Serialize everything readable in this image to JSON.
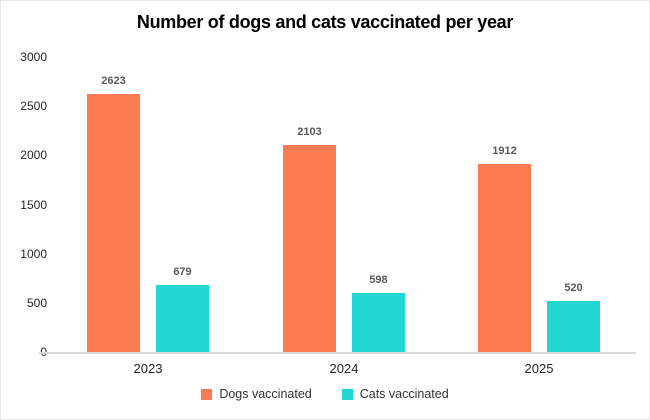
{
  "chart_data": {
    "type": "bar",
    "title": "Number of dogs and cats vaccinated per year",
    "categories": [
      "2023",
      "2024",
      "2025"
    ],
    "series": [
      {
        "name": "Dogs vaccinated",
        "values": [
          2623,
          2103,
          1912
        ],
        "color": "#FB7C53"
      },
      {
        "name": "Cats vaccinated",
        "values": [
          679,
          598,
          520
        ],
        "color": "#20D7D2"
      }
    ],
    "xlabel": "",
    "ylabel": "",
    "ylim": [
      0,
      3000
    ],
    "yticks": [
      0,
      500,
      1000,
      1500,
      2000,
      2500,
      3000
    ],
    "grid": false,
    "legend_position": "bottom",
    "data_labels": true,
    "colors": {
      "data_label": "#595959",
      "tick_label": "#262626",
      "axis_line": "#d9d9d9",
      "title": "#000000",
      "frame_border": "#e7e7e7"
    }
  }
}
